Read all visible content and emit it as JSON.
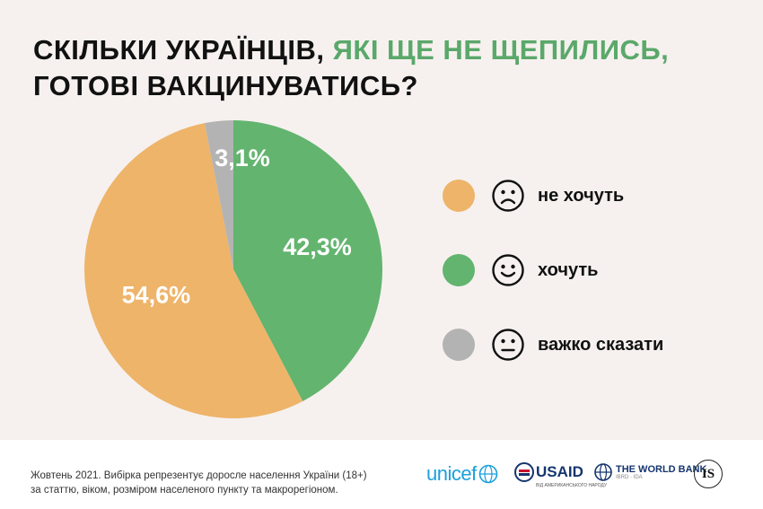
{
  "title": {
    "part1": "СКІЛЬКИ УКРАЇНЦІВ, ",
    "accent": "ЯКІ ЩЕ НЕ ЩЕПИЛИСЬ,",
    "line2": "ГОТОВІ ВАКЦИНУВАТИСЬ?"
  },
  "chart_data": {
    "type": "pie",
    "title": "СКІЛЬКИ УКРАЇНЦІВ, ЯКІ ЩЕ НЕ ЩЕПИЛИСЬ, ГОТОВІ ВАКЦИНУВАТИСЬ?",
    "slices": [
      {
        "label": "хочуть",
        "value": 42.3,
        "display": "42,3%",
        "color": "#63b46f"
      },
      {
        "label": "не хочуть",
        "value": 54.6,
        "display": "54,6%",
        "color": "#eeb46a"
      },
      {
        "label": "важко сказати",
        "value": 3.1,
        "display": "3,1%",
        "color": "#b3b3b3"
      }
    ],
    "legend_position": "right"
  },
  "legend": [
    {
      "label": "не хочуть",
      "color": "#eeb46a",
      "face": "sad-face-icon"
    },
    {
      "label": "хочуть",
      "color": "#63b46f",
      "face": "happy-face-icon"
    },
    {
      "label": "важко сказати",
      "color": "#b3b3b3",
      "face": "neutral-face-icon"
    }
  ],
  "footer": {
    "note_line1": "Жовтень 2021. Вибірка репрезентує доросле населення України (18+)",
    "note_line2": "за статтю, віком, розміром населеного пункту та макрорегіоном.",
    "logos": {
      "unicef": "unicef",
      "usaid": "USAID",
      "usaid_sub": "ВІД АМЕРИКАНСЬКОГО НАРОДУ",
      "worldbank": "THE WORLD BANK",
      "worldbank_sub": "IBRD · IDA",
      "is": "IS"
    }
  }
}
